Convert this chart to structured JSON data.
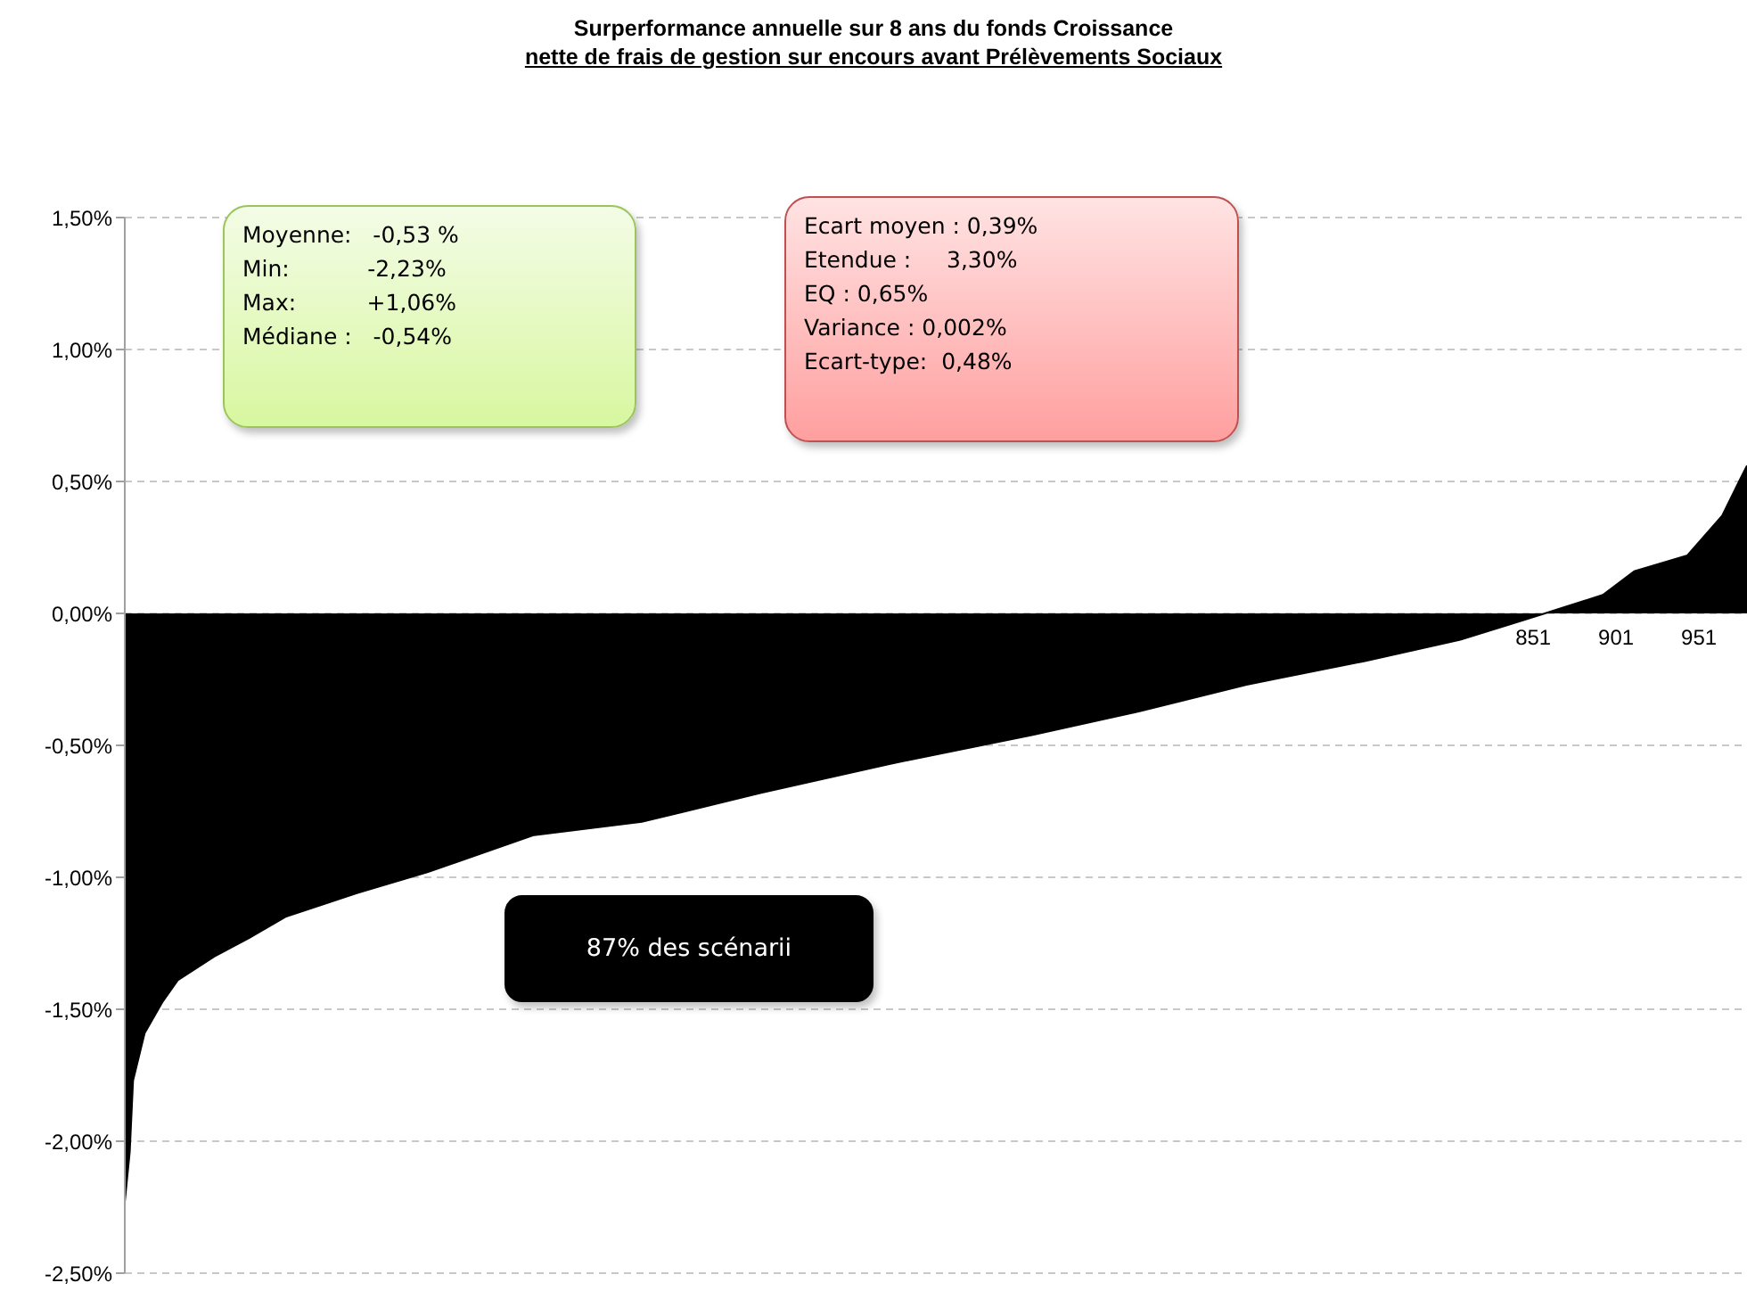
{
  "chart_data": {
    "type": "area",
    "title": "Surperformance annuelle sur 8 ans du fonds Croissance",
    "subtitle": "nette de frais de gestion sur encours avant Prélèvements Sociaux",
    "annotations": [
      "Moyenne:   -0,53 %",
      "Min:           -2,23%",
      "Max:          +1,06%",
      "Médiane :   -0,54%",
      "Ecart moyen : 0,39%",
      "Etendue :     3,30%",
      "EQ : 0,65%",
      "Variance : 0,002%",
      "Ecart-type:  0,48%",
      "87% des scénarii"
    ],
    "x": [
      1,
      4,
      6,
      13,
      24,
      33,
      55,
      76,
      98,
      141,
      184,
      248,
      313,
      385,
      463,
      549,
      614,
      678,
      750,
      807,
      843,
      858,
      893,
      912,
      944,
      965,
      976,
      980
    ],
    "series": [
      {
        "color": "#000000",
        "values": [
          -2.23,
          -2.04,
          -1.77,
          -1.59,
          -1.47,
          -1.39,
          -1.3,
          -1.23,
          -1.15,
          -1.06,
          -0.98,
          -0.84,
          -0.79,
          -0.68,
          -0.57,
          -0.46,
          -0.37,
          -0.27,
          -0.18,
          -0.1,
          -0.03,
          0,
          0.07,
          0.16,
          0.22,
          0.37,
          0.51,
          0.56
        ]
      }
    ],
    "xlim": [
      1,
      980
    ],
    "xticks": [
      851,
      901,
      951
    ],
    "ylim": [
      -2.5,
      1.5
    ],
    "yticks": [
      {
        "value": -2.5,
        "label": "-2,50%"
      },
      {
        "value": -2,
        "label": "-2,00%"
      },
      {
        "value": -1.5,
        "label": "-1,50%"
      },
      {
        "value": -1,
        "label": "-1,00%"
      },
      {
        "value": -0.5,
        "label": "-0,50%"
      },
      {
        "value": 0,
        "label": "0,00%"
      },
      {
        "value": 0.5,
        "label": "0,50%"
      },
      {
        "value": 1,
        "label": "1,00%"
      },
      {
        "value": 1.5,
        "label": "1,50%"
      }
    ],
    "grid": "y",
    "legend": false
  }
}
